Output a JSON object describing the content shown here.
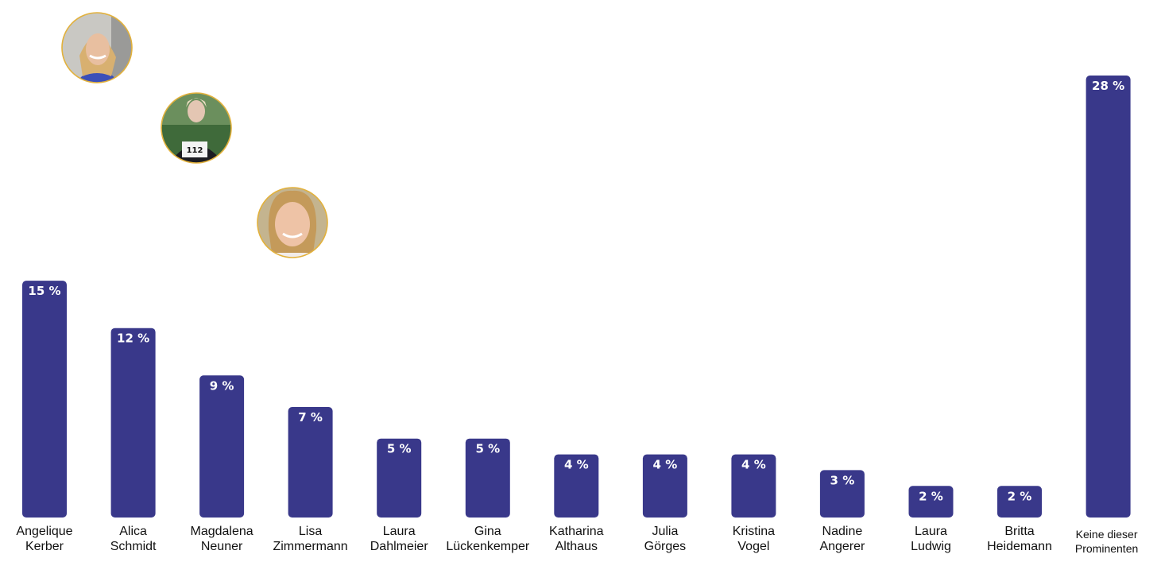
{
  "chart_data": {
    "type": "bar",
    "categories": [
      [
        "Angelique",
        "Kerber"
      ],
      [
        "Alica",
        "Schmidt"
      ],
      [
        "Magdalena",
        "Neuner"
      ],
      [
        "Lisa",
        "Zimmermann"
      ],
      [
        "Laura",
        "Dahlmeier"
      ],
      [
        "Gina",
        "Lückenkemper"
      ],
      [
        "Katharina",
        "Althaus"
      ],
      [
        "Julia",
        "Görges"
      ],
      [
        "Kristina",
        "Vogel"
      ],
      [
        "Nadine",
        "Angerer"
      ],
      [
        "Laura",
        "Ludwig"
      ],
      [
        "Britta",
        "Heidemann"
      ],
      [
        "Keine dieser",
        "Prominenten"
      ]
    ],
    "values": [
      15,
      12,
      9,
      7,
      5,
      5,
      4,
      4,
      4,
      3,
      2,
      2,
      28
    ],
    "value_labels": [
      "15 %",
      "12 %",
      "9 %",
      "7 %",
      "5 %",
      "5 %",
      "4 %",
      "4 %",
      "4 %",
      "3 %",
      "2 %",
      "2 %",
      "28 %"
    ],
    "bar_color": "#39388a",
    "label_inside_color": "#ffffff",
    "label_outside_color": "#39388a",
    "ylim": [
      0,
      28
    ],
    "grid": false,
    "legend": "none",
    "portraits": [
      {
        "category_index": 0,
        "description": "photo-portrait-blonde-woman-blue-top"
      },
      {
        "category_index": 1,
        "description": "photo-portrait-athlete-bib-112"
      },
      {
        "category_index": 2,
        "description": "photo-portrait-blonde-woman-smiling"
      }
    ],
    "portrait_bib_number": "112"
  }
}
